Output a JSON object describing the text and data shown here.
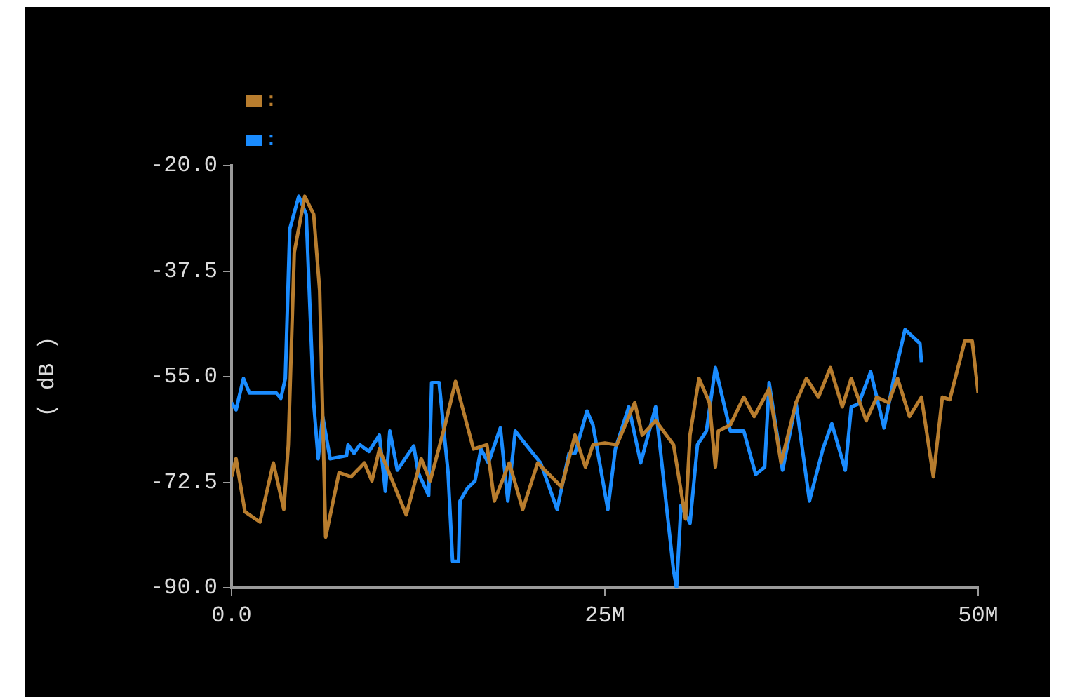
{
  "chart_data": {
    "type": "line",
    "ylabel": "( dB )",
    "xlim": [
      0,
      50
    ],
    "ylim": [
      -90,
      -20
    ],
    "xticks": [
      {
        "value": 0,
        "label": "0.0"
      },
      {
        "value": 25,
        "label": "25M"
      },
      {
        "value": 50,
        "label": "50M"
      }
    ],
    "yticks": [
      {
        "value": -20,
        "label": "-20.0"
      },
      {
        "value": -37.5,
        "label": "-37.5"
      },
      {
        "value": -55,
        "label": "-55.0"
      },
      {
        "value": -72.5,
        "label": "-72.5"
      },
      {
        "value": -90,
        "label": "-90.0"
      }
    ],
    "grid": false,
    "legend": "top left",
    "marker": "none",
    "line_style": "solid",
    "series": [
      {
        "name": ":",
        "color": "#b87d2e",
        "x": [
          0,
          0.3,
          0.9,
          1.9,
          2.8,
          3.5,
          3.8,
          4.2,
          4.9,
          5.5,
          5.9,
          6.3,
          7.2,
          8.0,
          8.9,
          9.4,
          9.9,
          11.7,
          12.7,
          13.3,
          14.3,
          15.0,
          16.2,
          17.1,
          17.6,
          18.6,
          19.5,
          20.5,
          22.1,
          23.0,
          23.7,
          24.2,
          25.0,
          25.8,
          27.0,
          27.5,
          28.4,
          29.6,
          30.4,
          30.7,
          31.3,
          32.0,
          32.4,
          32.6,
          33.4,
          34.3,
          35.0,
          36.0,
          36.8,
          37.8,
          38.5,
          39.3,
          40.1,
          40.9,
          41.5,
          42.5,
          43.2,
          44.0,
          44.6,
          45.4,
          46.2,
          47.0,
          47.6,
          48.1,
          49.1,
          49.6,
          50.0
        ],
        "values": [
          -71.6,
          -68.6,
          -77.4,
          -79.1,
          -69.3,
          -77.0,
          -66.3,
          -34.4,
          -25.1,
          -28.1,
          -40.7,
          -81.6,
          -70.9,
          -71.6,
          -69.3,
          -72.3,
          -67.0,
          -77.9,
          -68.6,
          -72.3,
          -63.0,
          -55.8,
          -67.0,
          -66.3,
          -75.6,
          -69.3,
          -77.0,
          -69.3,
          -73.3,
          -64.7,
          -70.0,
          -66.3,
          -66.0,
          -66.3,
          -59.3,
          -64.7,
          -62.3,
          -66.3,
          -78.6,
          -64.7,
          -55.3,
          -59.3,
          -70.0,
          -64.0,
          -63.0,
          -58.4,
          -61.6,
          -57.0,
          -69.3,
          -59.3,
          -55.3,
          -58.4,
          -53.5,
          -60.0,
          -55.3,
          -62.3,
          -58.4,
          -59.3,
          -55.3,
          -61.6,
          -58.4,
          -71.6,
          -58.4,
          -58.8,
          -49.1,
          -49.1,
          -57.7
        ]
      },
      {
        "name": ":",
        "color": "#1a8cff",
        "x": [
          0,
          0.3,
          0.8,
          1.2,
          3.0,
          3.3,
          3.6,
          3.9,
          4.5,
          5.0,
          5.5,
          5.8,
          6.1,
          6.6,
          7.7,
          7.8,
          8.2,
          8.6,
          9.2,
          9.9,
          10.3,
          10.6,
          11.1,
          12.2,
          12.5,
          13.2,
          13.4,
          13.9,
          14.5,
          14.8,
          15.2,
          15.3,
          15.8,
          16.3,
          16.7,
          17.2,
          18.0,
          18.5,
          19.0,
          19.4,
          20.7,
          21.8,
          22.6,
          23.0,
          23.8,
          24.2,
          25.2,
          25.7,
          26.6,
          27.4,
          28.4,
          29.6,
          29.8,
          30.1,
          30.7,
          31.2,
          31.8,
          32.4,
          33.4,
          34.3,
          35.1,
          35.7,
          36.0,
          36.9,
          37.8,
          38.7,
          39.6,
          40.2,
          41.1,
          41.5,
          42.0,
          42.8,
          43.7,
          44.4,
          45.1,
          46.1,
          46.2
        ],
        "values": [
          -59.3,
          -60.5,
          -55.3,
          -57.7,
          -57.7,
          -58.6,
          -55.3,
          -30.5,
          -25.1,
          -28.1,
          -59.3,
          -68.6,
          -61.6,
          -68.6,
          -68.1,
          -66.3,
          -67.7,
          -66.3,
          -67.4,
          -64.7,
          -74.0,
          -64.0,
          -70.5,
          -66.5,
          -70.9,
          -74.7,
          -56.0,
          -56.0,
          -70.9,
          -85.6,
          -85.6,
          -75.6,
          -73.5,
          -72.3,
          -67.0,
          -69.3,
          -63.5,
          -75.6,
          -64.0,
          -65.3,
          -69.3,
          -77.0,
          -67.7,
          -67.7,
          -60.7,
          -63.0,
          -77.0,
          -67.0,
          -60.0,
          -69.3,
          -60.0,
          -87.2,
          -90.0,
          -76.3,
          -79.3,
          -66.3,
          -64.0,
          -53.5,
          -64.0,
          -64.0,
          -71.2,
          -70.0,
          -56.0,
          -70.5,
          -59.3,
          -75.6,
          -67.0,
          -62.8,
          -70.5,
          -60.0,
          -59.5,
          -54.2,
          -63.5,
          -54.7,
          -47.2,
          -49.5,
          -52.6
        ]
      }
    ]
  }
}
